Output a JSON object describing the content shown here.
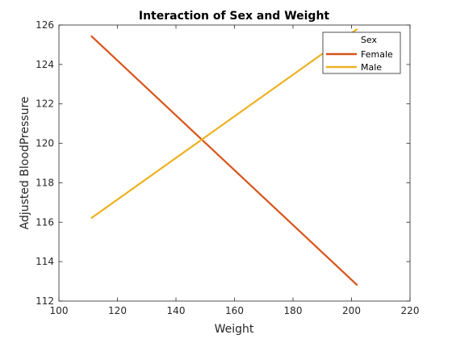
{
  "chart_data": {
    "type": "line",
    "title": "Interaction of Sex and Weight",
    "xlabel": "Weight",
    "ylabel": "Adjusted BloodPressure",
    "xlim": [
      100,
      220
    ],
    "ylim": [
      112,
      126
    ],
    "xticks": [
      100,
      120,
      140,
      160,
      180,
      200,
      220
    ],
    "yticks": [
      112,
      114,
      116,
      118,
      120,
      122,
      124,
      126
    ],
    "grid": false,
    "legend": {
      "title": "Sex",
      "position": "top-right"
    },
    "series": [
      {
        "name": "Female",
        "color": "#D95319",
        "x": [
          111,
          202
        ],
        "y": [
          125.45,
          112.8
        ]
      },
      {
        "name": "Male",
        "color": "#EDB120",
        "x": [
          111,
          202
        ],
        "y": [
          116.2,
          125.8
        ]
      }
    ]
  }
}
